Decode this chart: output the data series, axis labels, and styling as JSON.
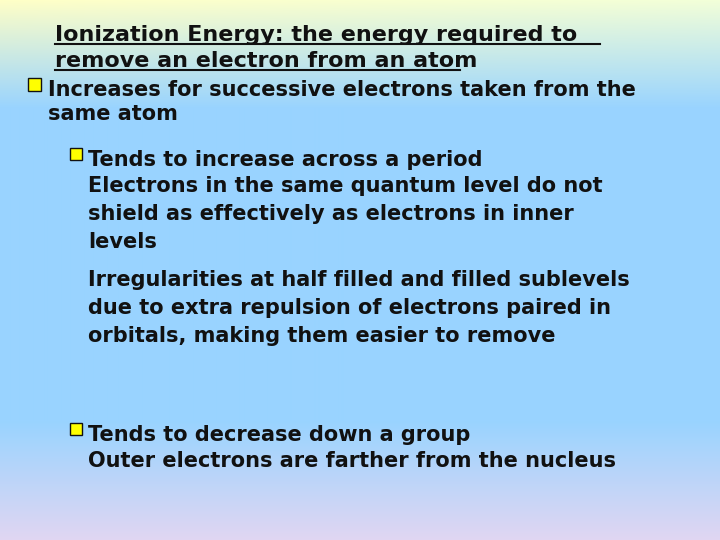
{
  "title_line1": "Ionization Energy: the energy required to",
  "title_line2": "remove an electron from an atom",
  "inc_line1": "Increases for successive electrons taken from the",
  "inc_line2": "same atom",
  "tends_inc": "Tends to increase across a period",
  "electrons_block": "Electrons in the same quantum level do not\nshield as effectively as electrons in inner\nlevels",
  "irreg_block": "Irregularities at half filled and filled sublevels\ndue to extra repulsion of electrons paired in\norbitals, making them easier to remove",
  "tends_dec": "Tends to decrease down a group",
  "outer_block": "Outer electrons are farther from the nucleus",
  "font_family": "DejaVu Sans",
  "title_fontsize": 16,
  "body_fontsize": 15,
  "text_color": "#111111",
  "bullet_facecolor": "#ffff00",
  "bullet_edgecolor": "#111111"
}
